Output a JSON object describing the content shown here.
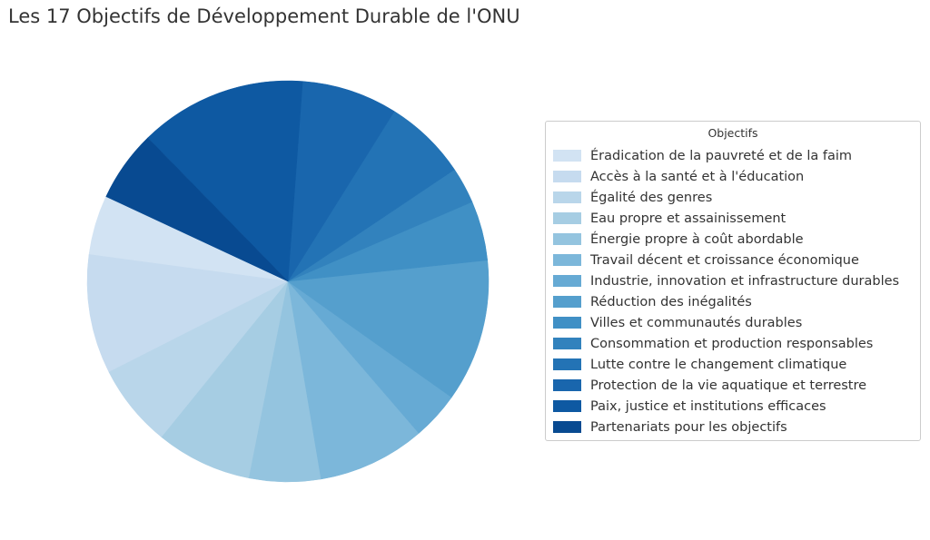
{
  "chart_data": {
    "type": "pie",
    "title": "Les 17 Objectifs de Développement Durable de l'ONU",
    "legend_title": "Objectifs",
    "legend_position": "right",
    "start_angle_deg": 155,
    "direction": "counterclockwise",
    "slices": [
      {
        "label": "Éradication de la pauvreté et de la faim",
        "value": 5.1,
        "color": "#d2e3f3"
      },
      {
        "label": "Accès à la santé et à l'éducation",
        "value": 10.2,
        "color": "#c6dbef"
      },
      {
        "label": "Égalité des genres",
        "value": 7.1,
        "color": "#b9d6ea"
      },
      {
        "label": "Eau propre et assainissement",
        "value": 8.2,
        "color": "#a6cde3"
      },
      {
        "label": "Énergie propre à coût abordable",
        "value": 6.1,
        "color": "#94c4df"
      },
      {
        "label": "Travail décent et croissance économique",
        "value": 9.2,
        "color": "#7cb7da"
      },
      {
        "label": "Industrie, innovation et infrastructure durables",
        "value": 4.1,
        "color": "#66aad4"
      },
      {
        "label": "Réduction des inégalités",
        "value": 12.2,
        "color": "#559fcd"
      },
      {
        "label": "Villes et communautés durables",
        "value": 5.1,
        "color": "#4090c5"
      },
      {
        "label": "Consommation et production responsables",
        "value": 3.1,
        "color": "#3282bd"
      },
      {
        "label": "Lutte contre le changement climatique",
        "value": 7.1,
        "color": "#2373b5"
      },
      {
        "label": "Protection de la vie aquatique et terrestre",
        "value": 8.2,
        "color": "#1966ad"
      },
      {
        "label": "Paix, justice et institutions efficaces",
        "value": 14.3,
        "color": "#0e59a2"
      },
      {
        "label": "Partenariats pour les objectifs",
        "value": 6.1,
        "color": "#084a91"
      }
    ]
  }
}
